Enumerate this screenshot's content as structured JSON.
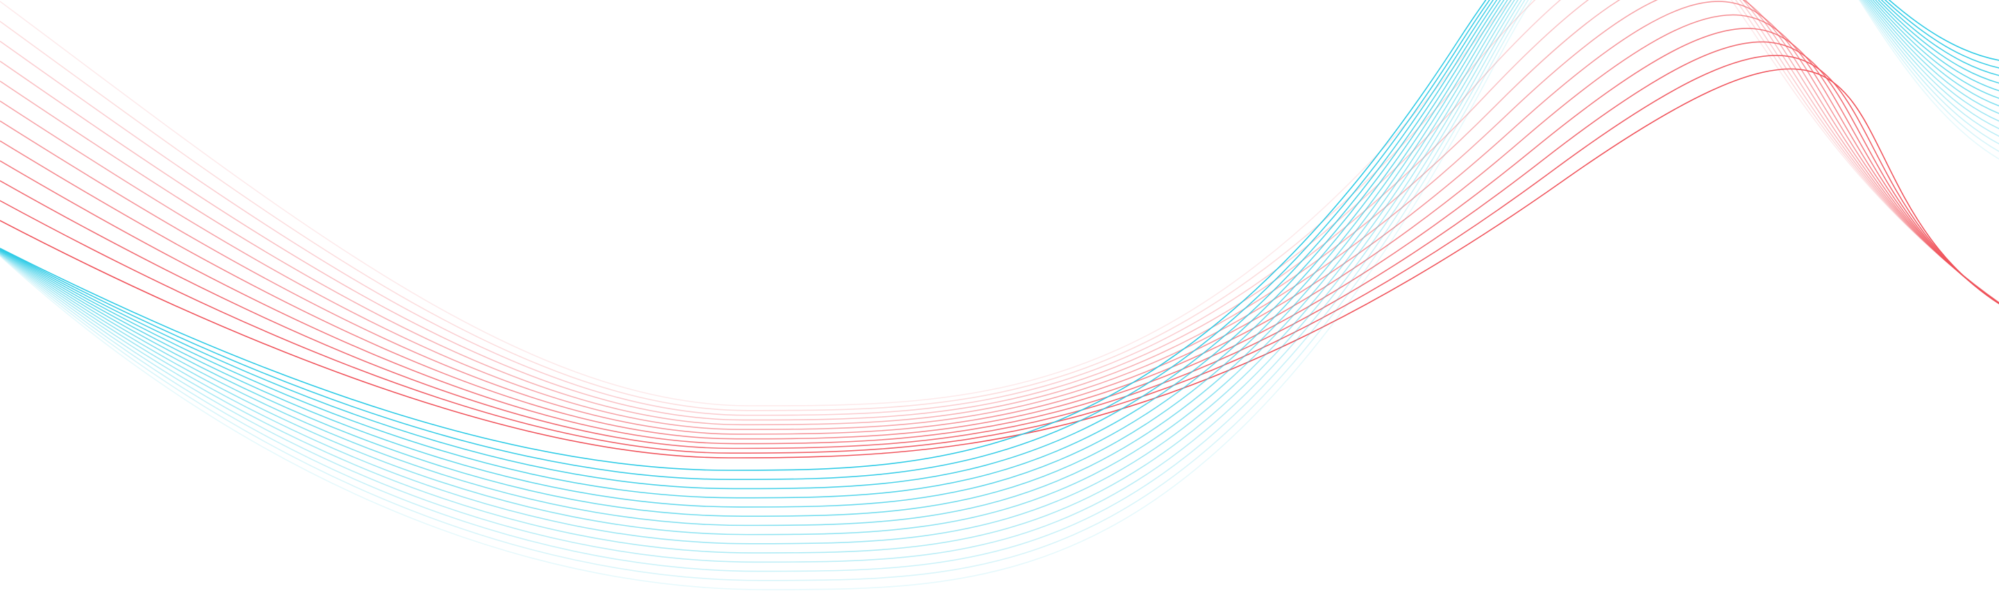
{
  "background_color": "#ffffff",
  "wave_bands": [
    {
      "name": "red-band",
      "color": "#f0545c",
      "line_count": 12,
      "opacity_range": [
        0.12,
        1.0
      ]
    },
    {
      "name": "cyan-band",
      "color": "#2ecbe6",
      "line_count": 14,
      "opacity_range": [
        0.12,
        1.0
      ]
    }
  ]
}
